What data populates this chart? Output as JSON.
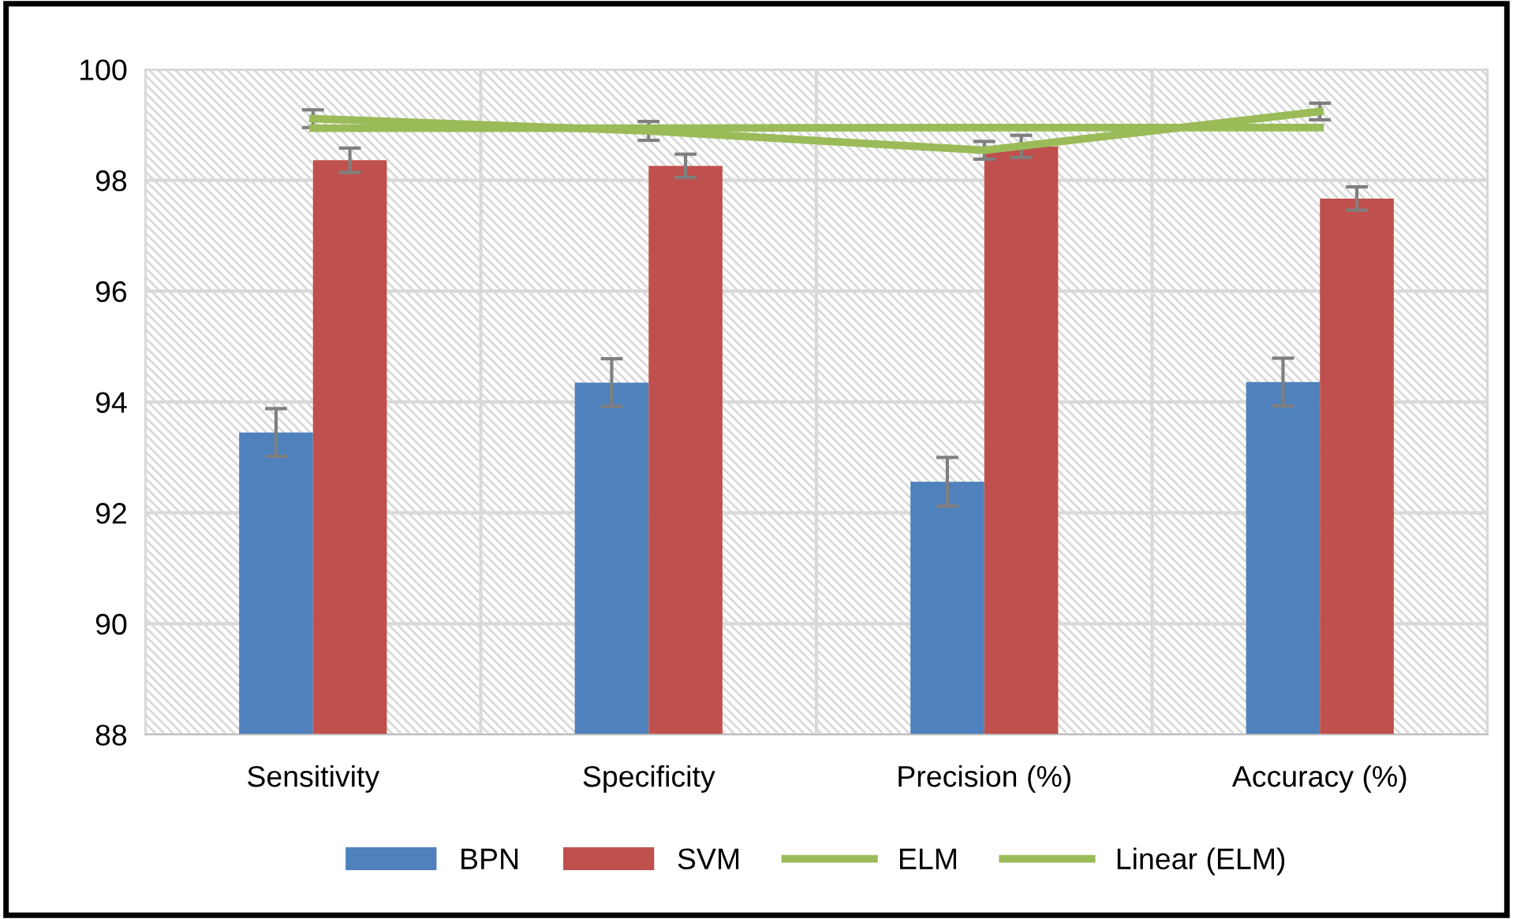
{
  "chart_data": {
    "type": "bar",
    "categories": [
      "Sensitivity",
      "Specificity",
      "Precision (%)",
      "Accuracy (%)"
    ],
    "series": [
      {
        "name": "BPN",
        "color": "#4f81bd",
        "values": [
          93.45,
          94.35,
          92.56,
          94.36
        ],
        "errors": [
          0.43,
          0.43,
          0.44,
          0.43
        ]
      },
      {
        "name": "SVM",
        "color": "#c0504d",
        "values": [
          98.36,
          98.26,
          98.61,
          97.67
        ],
        "errors": [
          0.22,
          0.21,
          0.2,
          0.21
        ]
      },
      {
        "name": "ELM",
        "type": "line",
        "color": "#9bbb59",
        "values": [
          99.11,
          98.89,
          98.54,
          99.24
        ],
        "errors": [
          0.16,
          0.17,
          0.16,
          0.15
        ]
      },
      {
        "name": "Linear (ELM)",
        "type": "line",
        "color": "#9bbb59",
        "values": [
          98.94,
          98.94,
          98.95,
          98.95
        ]
      }
    ],
    "ylim": [
      88,
      100
    ],
    "yticks": [
      88,
      90,
      92,
      94,
      96,
      98,
      100
    ],
    "grid": true,
    "legend": "bottom",
    "marker": "none",
    "line_style": "solid"
  }
}
